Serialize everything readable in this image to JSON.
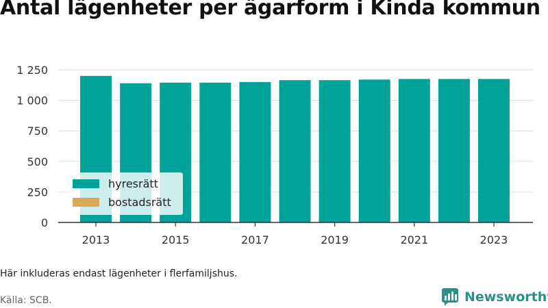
{
  "title": "Antal lägenheter per ägarform i Kinda kommun",
  "note": "Här inkluderas endast lägenheter i flerfamiljshus.",
  "source": "Källa: SCB.",
  "brand": "Newsworthy",
  "colors": {
    "hyresratt": "#00a39a",
    "bostadsratt": "#d9aa55",
    "grid": "#dddddd",
    "axis": "#333333",
    "brand": "#2a8f86"
  },
  "chart_data": {
    "type": "bar",
    "stacked": true,
    "categories": [
      "2013",
      "2014",
      "2015",
      "2016",
      "2017",
      "2018",
      "2019",
      "2020",
      "2021",
      "2022",
      "2023"
    ],
    "x_tick_labels": [
      "2013",
      "2015",
      "2017",
      "2019",
      "2021",
      "2023"
    ],
    "series": [
      {
        "name": "hyresrätt",
        "color": "#00a39a",
        "values": [
          1200,
          1140,
          1145,
          1145,
          1150,
          1165,
          1165,
          1170,
          1175,
          1175,
          1175
        ]
      },
      {
        "name": "bostadsrätt",
        "color": "#d9aa55",
        "values": [
          0,
          0,
          0,
          0,
          0,
          0,
          0,
          0,
          0,
          0,
          0
        ]
      }
    ],
    "ylim": [
      0,
      1250
    ],
    "y_ticks": [
      0,
      250,
      500,
      750,
      1000,
      1250
    ],
    "y_tick_labels": [
      "0",
      "250",
      "500",
      "750",
      "1 000",
      "1 250"
    ],
    "grid": true,
    "legend": "bottom-left"
  }
}
